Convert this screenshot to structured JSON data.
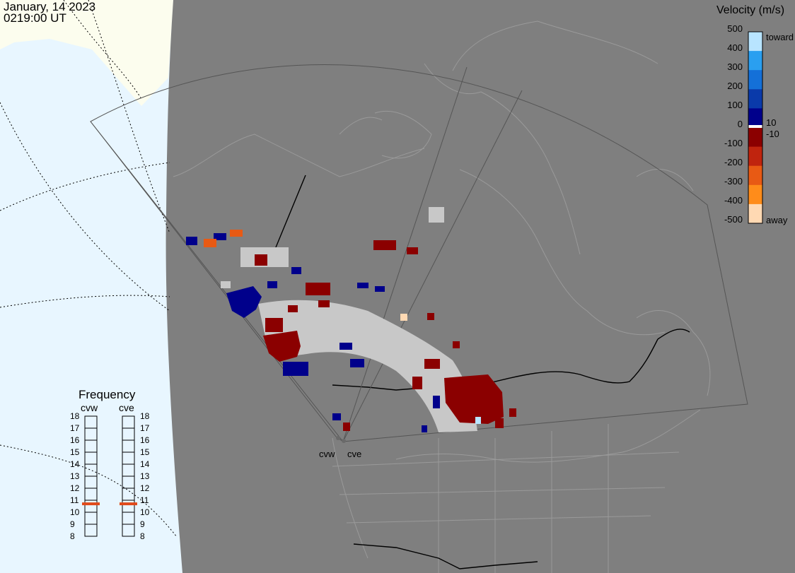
{
  "header": {
    "date": "January, 14 2023",
    "time": "0219:00 UT"
  },
  "colorbar": {
    "title": "Velocity (m/s)",
    "ticks": [
      "500",
      "400",
      "300",
      "200",
      "100",
      "0",
      "-100",
      "-200",
      "-300",
      "-400",
      "-500"
    ],
    "side_labels": {
      "toward": "toward",
      "away": "away",
      "pos_small": "10",
      "neg_small": "-10"
    },
    "colors": [
      "#ffd9b3",
      "#ff8c1a",
      "#e85a14",
      "#c0240e",
      "#8b0000",
      "#00008b",
      "#0a3aaa",
      "#1470d8",
      "#2a9ff0",
      "#b8e4ff"
    ]
  },
  "radars": [
    {
      "id": "cvw",
      "label": "cvw"
    },
    {
      "id": "cve",
      "label": "cve"
    }
  ],
  "frequency": {
    "title": "Frequency",
    "unit_ticks": [
      "18",
      "17",
      "16",
      "15",
      "14",
      "13",
      "12",
      "11",
      "10",
      "9",
      "8"
    ],
    "cvw": 10.7,
    "cve": 10.7
  },
  "colors": {
    "land": "#7f7f7f",
    "ocean": "#e8f6ff",
    "arctic": "#fcfdee",
    "ground_scatter": "#c8c8c8",
    "frequency_marker": "#e04a1a"
  }
}
